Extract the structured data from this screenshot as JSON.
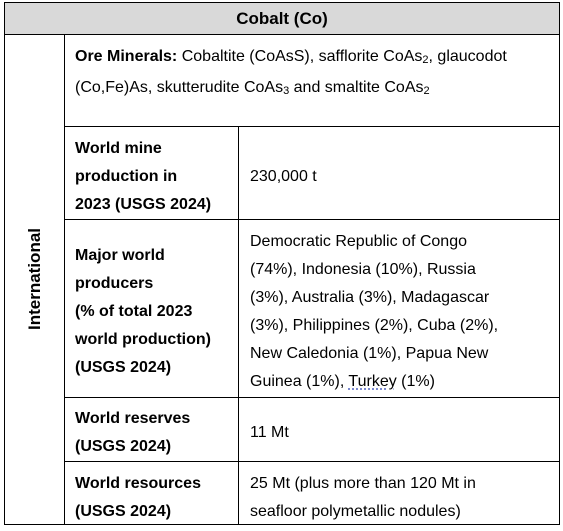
{
  "title": "Cobalt (Co)",
  "side_label": "International",
  "ore": {
    "label": "Ore Minerals:",
    "text_1": " Cobaltite (CoAsS), safflorite CoAs",
    "sub_1": "2",
    "text_2": ", glaucodot (Co,Fe)As, skutterudite CoAs",
    "sub_2": "3",
    "text_3": " and smaltite CoAs",
    "sub_3": "2"
  },
  "rows": [
    {
      "label_lines": [
        "World mine",
        "production in",
        "2023 (USGS 2024)"
      ],
      "value_lines": [
        "230,000 t"
      ]
    },
    {
      "label_lines": [
        "Major world",
        "producers",
        "(% of total 2023",
        "world production)",
        "(USGS 2024)"
      ],
      "value_lines": [
        "Democratic Republic of Congo",
        "(74%), Indonesia (10%), Russia",
        "(3%), Australia (3%), Madagascar",
        "(3%), Philippines (2%), Cuba (2%),",
        "New Caledonia (1%), Papua New",
        "Guinea (1%), "
      ],
      "value_squiggle": "Turkey",
      "value_tail": " (1%)"
    },
    {
      "label_lines": [
        "World reserves",
        "(USGS 2024)"
      ],
      "value_lines": [
        "11 Mt"
      ]
    },
    {
      "label_lines": [
        "World resources",
        "(USGS 2024)"
      ],
      "value_lines": [
        "25 Mt (plus more than 120 Mt in",
        "seafloor polymetallic nodules)"
      ]
    }
  ]
}
